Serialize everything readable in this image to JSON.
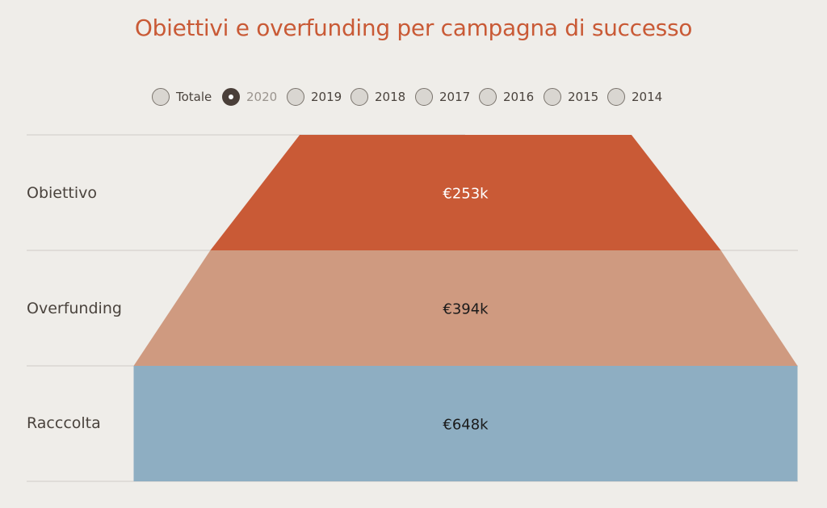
{
  "title": "Obiettivi e overfunding per campagna di successo",
  "filters": {
    "options": [
      "Totale",
      "2020",
      "2019",
      "2018",
      "2017",
      "2016",
      "2015",
      "2014"
    ],
    "selected": "2020"
  },
  "chart_data": {
    "type": "funnel",
    "title": "Obiettivi e overfunding per campagna di successo",
    "categories": [
      "Obiettivo",
      "Overfunding",
      "Racccolta"
    ],
    "values": [
      253,
      394,
      648
    ],
    "value_labels": [
      "€253k",
      "€394k",
      "€648k"
    ],
    "unit": "€k",
    "colors": [
      "#c95a36",
      "#cf9a80",
      "#8eaec2"
    ],
    "label_colors": [
      "#ffffff",
      "#1a1a1a",
      "#1a1a1a"
    ]
  }
}
